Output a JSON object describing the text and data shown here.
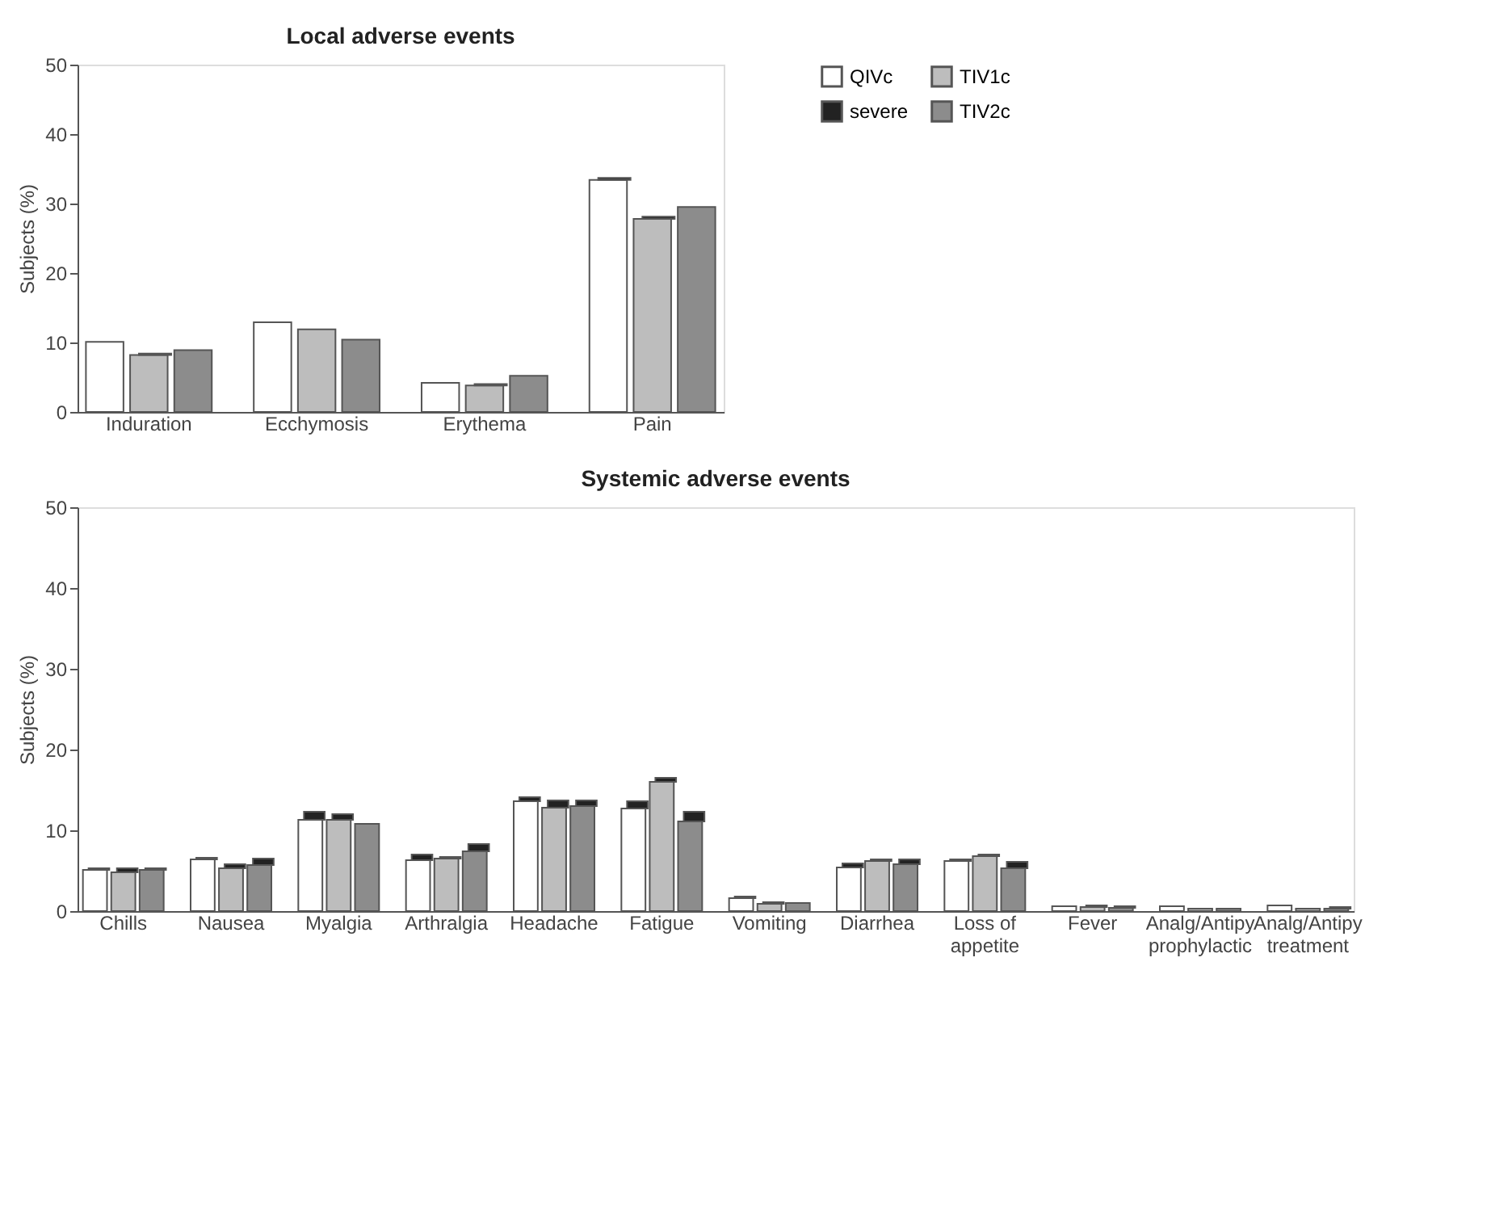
{
  "chart_data": [
    {
      "type": "bar",
      "title": "Local adverse events",
      "ylabel": "Subjects (%)",
      "ylim": [
        0,
        50
      ],
      "yticks": [
        0,
        10,
        20,
        30,
        40,
        50
      ],
      "grid": false,
      "legend": "right",
      "categories": [
        "Induration",
        "Ecchymosis",
        "Erythema",
        "Pain"
      ],
      "series": [
        {
          "name": "QIVc",
          "color": "#ffffff",
          "values": [
            10.1,
            12.9,
            4.2,
            33.4
          ]
        },
        {
          "name": "severe",
          "color": "#222222",
          "base": [
            null,
            null,
            null,
            33.4
          ],
          "values": [
            null,
            null,
            null,
            0.3
          ]
        },
        {
          "name": "TIV1c",
          "color": "#bdbdbd",
          "values": [
            8.2,
            11.9,
            3.8,
            27.8
          ]
        },
        {
          "color": "#222222",
          "base": [
            8.2,
            null,
            3.8,
            27.8
          ],
          "values": [
            0.2,
            null,
            0.2,
            0.3
          ]
        },
        {
          "name": "TIV2c",
          "color": "#8c8c8c",
          "values": [
            8.9,
            10.4,
            5.2,
            29.5
          ]
        }
      ]
    },
    {
      "type": "bar",
      "title": "Systemic adverse events",
      "ylabel": "Subjects (%)",
      "ylim": [
        0,
        50
      ],
      "yticks": [
        0,
        10,
        20,
        30,
        40,
        50
      ],
      "grid": false,
      "categories": [
        "Chills",
        "Nausea",
        "Myalgia",
        "Arthralgia",
        "Headache",
        "Fatigue",
        "Vomiting",
        "Diarrhea",
        "Loss of\nappetite",
        "Fever",
        "Analg/Antipy\nprophylactic",
        "Analg/Antipy\ntreatment"
      ],
      "series": [
        {
          "color": "#ffffff",
          "values": [
            5.1,
            6.4,
            11.3,
            6.3,
            13.6,
            12.7,
            1.6,
            5.4,
            6.2,
            0.6,
            0.6,
            0.7
          ]
        },
        {
          "color": "#222222",
          "base": [
            5.1,
            6.4,
            11.3,
            6.3,
            13.6,
            12.7,
            1.6,
            5.4,
            6.2,
            null,
            null,
            null
          ],
          "values": [
            0.2,
            0.2,
            1.0,
            0.7,
            0.5,
            0.9,
            0.2,
            0.5,
            0.2,
            null,
            null,
            null
          ]
        },
        {
          "color": "#bdbdbd",
          "values": [
            4.8,
            5.3,
            11.3,
            6.5,
            12.8,
            16.0,
            0.9,
            6.2,
            6.8,
            0.5,
            0.3,
            0.3
          ]
        },
        {
          "color": "#222222",
          "base": [
            4.8,
            5.3,
            11.3,
            6.5,
            12.8,
            16.0,
            0.9,
            6.2,
            6.8,
            0.5,
            null,
            null
          ],
          "values": [
            0.5,
            0.5,
            0.7,
            0.2,
            0.9,
            0.5,
            0.2,
            0.2,
            0.2,
            0.2,
            null,
            null
          ]
        },
        {
          "color": "#8c8c8c",
          "values": [
            5.1,
            5.7,
            10.8,
            7.4,
            13.0,
            11.1,
            1.0,
            5.8,
            5.3,
            0.4,
            0.3,
            0.3
          ]
        },
        {
          "color": "#222222",
          "base": [
            5.1,
            5.7,
            null,
            7.4,
            13.0,
            11.1,
            null,
            5.8,
            5.3,
            0.4,
            null,
            0.3
          ],
          "values": [
            0.2,
            0.8,
            null,
            0.9,
            0.7,
            1.2,
            null,
            0.6,
            0.8,
            0.2,
            null,
            0.2
          ]
        }
      ]
    }
  ]
}
